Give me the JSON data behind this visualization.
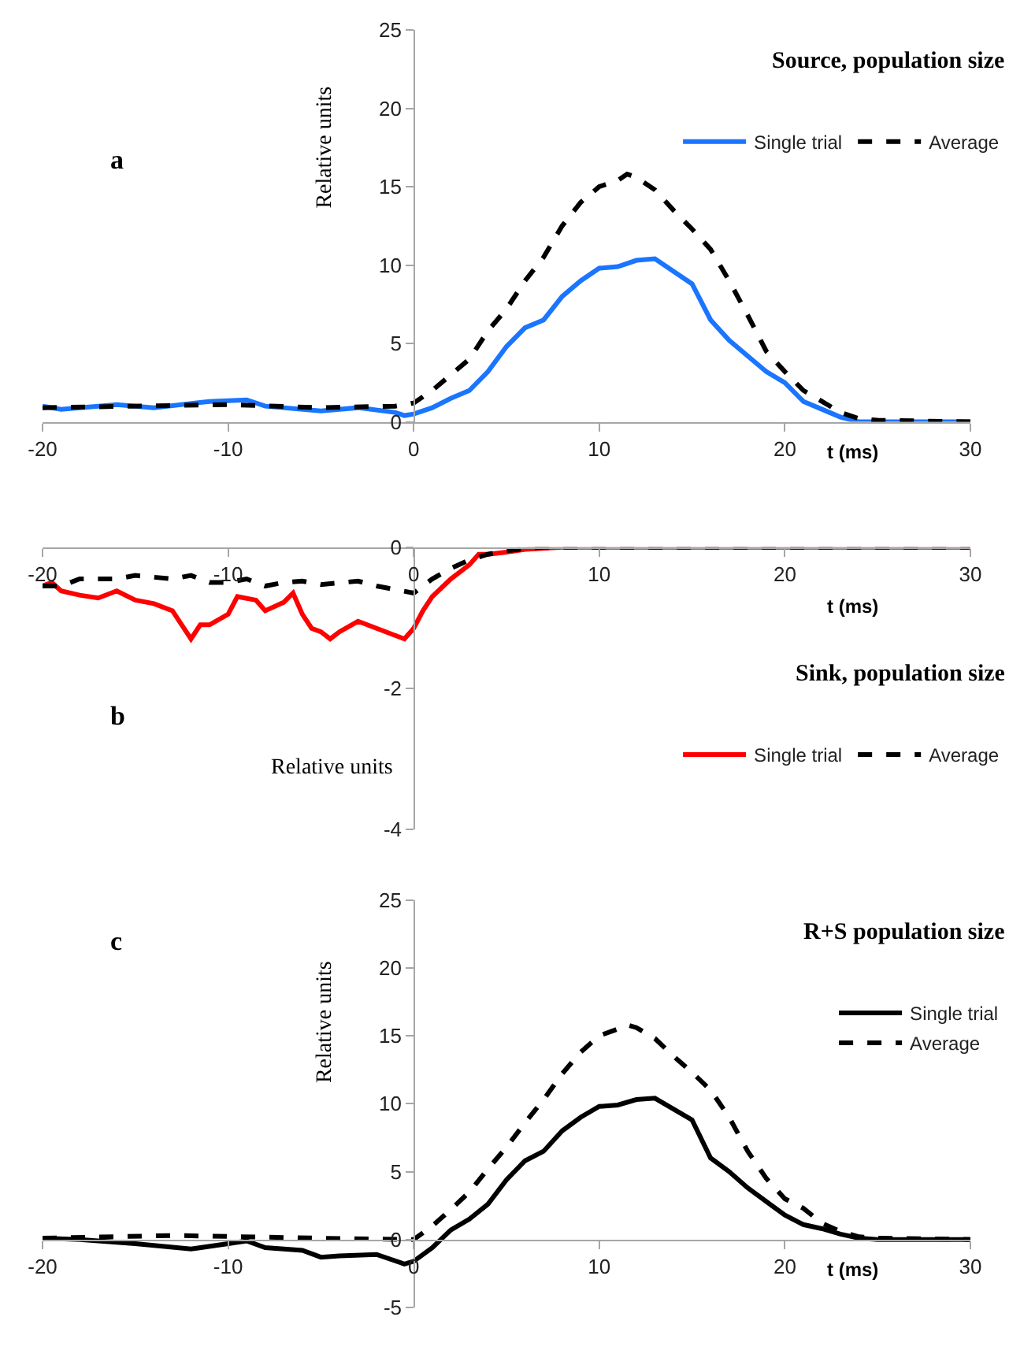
{
  "chart_data": [
    {
      "type": "line",
      "title": "Source, population size",
      "xlabel": "t (ms)",
      "ylabel": "Relative units",
      "annotations": [
        "a"
      ],
      "xlim": [
        -20,
        30
      ],
      "ylim": [
        0,
        25
      ],
      "xticks": [
        -20,
        -10,
        0,
        10,
        20,
        30
      ],
      "yticks": [
        0,
        5,
        10,
        15,
        20,
        25
      ],
      "legend": "top right",
      "marker": "none",
      "series": [
        {
          "name": "Single trial",
          "color": "#1a75ff",
          "line_style": "solid",
          "x": [
            -20,
            -19,
            -16,
            -14,
            -11,
            -9,
            -8,
            -5,
            -3,
            -1,
            -0.5,
            0,
            1,
            2,
            3,
            4,
            5,
            6,
            7,
            8,
            9,
            10,
            11,
            12,
            13,
            14,
            15,
            16,
            17,
            18,
            19,
            20,
            21,
            22,
            23,
            24,
            30
          ],
          "values": [
            1.0,
            0.8,
            1.1,
            0.9,
            1.3,
            1.4,
            1.0,
            0.7,
            0.9,
            0.6,
            0.4,
            0.5,
            0.9,
            1.5,
            2.0,
            3.2,
            4.8,
            6.0,
            6.5,
            8.0,
            9.0,
            9.8,
            9.9,
            10.3,
            10.4,
            9.6,
            8.8,
            6.5,
            5.2,
            4.2,
            3.2,
            2.5,
            1.3,
            0.8,
            0.3,
            0,
            0
          ]
        },
        {
          "name": "Average",
          "color": "#000000",
          "line_style": "dashed",
          "x": [
            -20,
            -10,
            -5,
            -1,
            0,
            1,
            2,
            3,
            4,
            5,
            6,
            7,
            8,
            9,
            10,
            11,
            11.5,
            12,
            13,
            14,
            15,
            16,
            17,
            18,
            19,
            20,
            21,
            22,
            23,
            24,
            25,
            30
          ],
          "values": [
            0.9,
            1.1,
            0.9,
            1.0,
            1.2,
            2.0,
            3.0,
            4.0,
            5.8,
            7.2,
            9.0,
            10.5,
            12.5,
            14.0,
            15.0,
            15.4,
            15.8,
            15.6,
            14.8,
            13.5,
            12.3,
            11.0,
            9.0,
            6.8,
            4.5,
            3.2,
            2.0,
            1.3,
            0.6,
            0.2,
            0.1,
            0
          ]
        }
      ]
    },
    {
      "type": "line",
      "title": "Sink, population size",
      "xlabel": "t (ms)",
      "ylabel": "Relative units",
      "annotations": [
        "b"
      ],
      "xlim": [
        -20,
        30
      ],
      "ylim": [
        -4,
        0
      ],
      "xticks": [
        -20,
        -10,
        0,
        10,
        20,
        30
      ],
      "yticks": [
        -4,
        -2,
        0
      ],
      "legend": "right",
      "marker": "none",
      "series": [
        {
          "name": "Single trial",
          "color": "#ff0000",
          "line_style": "solid",
          "x": [
            -20,
            -19.5,
            -19,
            -18,
            -17,
            -16,
            -15,
            -14,
            -13,
            -12.5,
            -12,
            -11.5,
            -11,
            -10,
            -9.5,
            -8.5,
            -8,
            -7,
            -6.5,
            -6,
            -5.5,
            -5,
            -4.5,
            -4,
            -3,
            -2,
            -1,
            -0.5,
            0,
            0.5,
            1,
            2,
            3,
            3.5,
            4,
            5,
            6,
            8,
            30
          ],
          "values": [
            -0.55,
            -0.5,
            -0.62,
            -0.68,
            -0.72,
            -0.62,
            -0.75,
            -0.8,
            -0.9,
            -1.1,
            -1.3,
            -1.1,
            -1.1,
            -0.95,
            -0.7,
            -0.75,
            -0.9,
            -0.78,
            -0.65,
            -0.95,
            -1.15,
            -1.2,
            -1.3,
            -1.2,
            -1.05,
            -1.15,
            -1.25,
            -1.3,
            -1.15,
            -0.9,
            -0.7,
            -0.45,
            -0.25,
            -0.1,
            -0.1,
            -0.07,
            -0.03,
            0,
            0
          ]
        },
        {
          "name": "Average",
          "color": "#000000",
          "line_style": "dashed",
          "x": [
            -20,
            -19,
            -18,
            -16,
            -15,
            -13,
            -12,
            -11,
            -10,
            -9,
            -8,
            -7,
            -6,
            -5,
            -3,
            -2,
            -1,
            0,
            1,
            2,
            3,
            4,
            5,
            6,
            7,
            30
          ],
          "values": [
            -0.55,
            -0.55,
            -0.45,
            -0.45,
            -0.4,
            -0.45,
            -0.4,
            -0.5,
            -0.5,
            -0.45,
            -0.55,
            -0.5,
            -0.48,
            -0.53,
            -0.48,
            -0.55,
            -0.6,
            -0.65,
            -0.45,
            -0.3,
            -0.18,
            -0.1,
            -0.05,
            -0.02,
            0,
            0
          ]
        }
      ]
    },
    {
      "type": "line",
      "title": "R+S population size",
      "xlabel": "t (ms)",
      "ylabel": "Relative units",
      "annotations": [
        "c"
      ],
      "xlim": [
        -20,
        30
      ],
      "ylim": [
        -5,
        25
      ],
      "xticks": [
        -20,
        -10,
        0,
        10,
        20,
        30
      ],
      "yticks": [
        -5,
        0,
        5,
        10,
        15,
        20,
        25
      ],
      "legend": "top right",
      "marker": "none",
      "series": [
        {
          "name": "Single trial",
          "color": "#000000",
          "line_style": "solid",
          "x": [
            -20,
            -18,
            -15,
            -12,
            -10,
            -9,
            -8,
            -6,
            -5,
            -4,
            -2,
            -0.5,
            0,
            1,
            2,
            3,
            4,
            5,
            6,
            7,
            8,
            9,
            10,
            11,
            12,
            13,
            14,
            15,
            16,
            17,
            18,
            19,
            20,
            21,
            22,
            23,
            24,
            25,
            30
          ],
          "values": [
            0.1,
            0,
            -0.3,
            -0.7,
            -0.3,
            -0.1,
            -0.6,
            -0.8,
            -1.3,
            -1.2,
            -1.1,
            -1.8,
            -1.6,
            -0.6,
            0.7,
            1.5,
            2.6,
            4.4,
            5.8,
            6.5,
            8.0,
            9.0,
            9.8,
            9.9,
            10.3,
            10.4,
            9.6,
            8.8,
            6.0,
            5.0,
            3.8,
            2.8,
            1.8,
            1.1,
            0.8,
            0.4,
            0.1,
            0,
            0
          ]
        },
        {
          "name": "Average",
          "color": "#000000",
          "line_style": "dashed",
          "x": [
            -20,
            -13,
            -5,
            0,
            1,
            2,
            3,
            4,
            5,
            6,
            7,
            8,
            9,
            10,
            11,
            11.5,
            12,
            13,
            14,
            15,
            16,
            17,
            18,
            19,
            20,
            21,
            22,
            23,
            24,
            25,
            30
          ],
          "values": [
            0.1,
            0.3,
            0.1,
            0,
            1.0,
            2.2,
            3.5,
            5.2,
            6.8,
            8.6,
            10.3,
            12.2,
            13.8,
            15.0,
            15.5,
            15.8,
            15.6,
            14.8,
            13.5,
            12.3,
            11.0,
            9.0,
            6.5,
            4.5,
            3.0,
            2.3,
            1.2,
            0.6,
            0.2,
            0.1,
            0
          ]
        }
      ]
    }
  ]
}
